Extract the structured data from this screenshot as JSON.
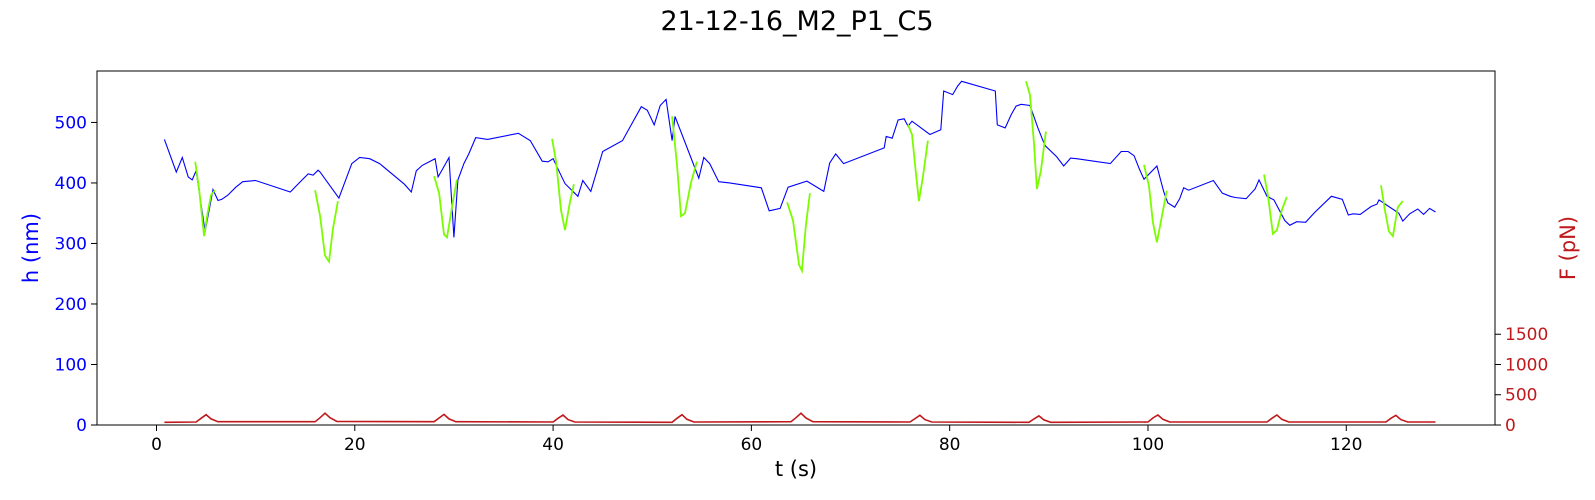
{
  "chart_data": {
    "type": "line",
    "title": "21-12-16_M2_P1_C5",
    "xlabel": "t (s)",
    "ylabel_left": "h (nm)",
    "ylabel_right": "F (pN)",
    "xlim": [
      -6,
      135
    ],
    "ylim_left": [
      0,
      585
    ],
    "ylim_right": [
      0,
      5850
    ],
    "x_ticks": [
      0,
      20,
      40,
      60,
      80,
      100,
      120
    ],
    "y_left_ticks": [
      0,
      100,
      200,
      300,
      400,
      500
    ],
    "y_right_ticks": [
      0,
      500,
      1000,
      1500
    ],
    "grid": false,
    "colors": {
      "height": "#0000ff",
      "height_highlight": "#7cfc00",
      "force": "#c0191c",
      "left_axis": "#0000ff",
      "right_axis": "#c0191c"
    },
    "series": [
      {
        "axis": "left",
        "color": "#0000ff",
        "x": [
          0.8,
          2.0,
          2.6,
          3.2,
          3.6,
          4.0,
          4.9,
          5.7,
          6.2,
          6.6,
          7.2,
          8.0,
          8.7,
          10.0,
          13.5,
          14.5,
          15.3,
          15.8,
          16.3,
          16.5,
          18.4,
          19.7,
          20.5,
          21.5,
          22.5,
          25.0,
          25.7,
          26.2,
          26.8,
          28.1,
          28.4,
          28.9,
          29.5,
          30.0,
          30.4,
          31.0,
          31.5,
          32.2,
          33.4,
          36.5,
          37.7,
          38.9,
          39.5,
          40.0,
          40.4,
          41.2,
          42.5,
          43.0,
          43.8,
          45.0,
          47.0,
          48.9,
          49.5,
          50.2,
          50.8,
          51.4,
          52.0,
          52.3,
          54.7,
          55.2,
          55.8,
          56.7,
          57.8,
          61.0,
          61.8,
          62.9,
          63.7,
          65.6,
          67.3,
          67.9,
          68.5,
          69.3,
          73.4,
          73.6,
          74.2,
          74.8,
          75.4,
          75.8,
          76.2,
          78.0,
          79.1,
          79.4,
          80.3,
          80.8,
          81.2,
          84.6,
          84.8,
          85.6,
          86.2,
          86.7,
          87.2,
          88.1,
          88.9,
          89.6,
          90.8,
          91.5,
          92.2,
          92.8,
          96.2,
          97.3,
          98.0,
          98.6,
          99.1,
          99.6,
          100.9,
          101.6,
          102.0,
          102.7,
          103.2,
          103.6,
          104.1,
          106.6,
          107.5,
          108.3,
          108.8,
          109.9,
          110.8,
          111.2,
          112.0,
          112.7,
          113.8,
          114.3,
          115.0,
          115.9,
          116.8,
          118.5,
          119.6,
          120.2,
          120.7,
          121.4,
          122.5,
          123.1,
          123.3,
          125.3,
          125.7,
          126.4,
          127.2,
          127.8,
          128.4,
          129.0
        ],
        "y": [
          472,
          418,
          442,
          410,
          405,
          420,
          320,
          389,
          371,
          373,
          380,
          393,
          402,
          404,
          385,
          402,
          415,
          413,
          421,
          418,
          375,
          432,
          442,
          440,
          432,
          398,
          385,
          420,
          429,
          440,
          410,
          424,
          442,
          310,
          405,
          432,
          448,
          475,
          472,
          482,
          470,
          436,
          435,
          440,
          426,
          399,
          378,
          404,
          386,
          452,
          470,
          526,
          520,
          496,
          528,
          538,
          470,
          510,
          408,
          442,
          432,
          402,
          400,
          392,
          354,
          358,
          393,
          403,
          386,
          433,
          448,
          432,
          458,
          477,
          474,
          504,
          506,
          494,
          502,
          480,
          488,
          552,
          546,
          560,
          568,
          552,
          496,
          491,
          513,
          527,
          530,
          528,
          491,
          462,
          443,
          428,
          441,
          440,
          432,
          452,
          452,
          445,
          424,
          406,
          428,
          385,
          367,
          360,
          374,
          392,
          388,
          404,
          383,
          378,
          376,
          374,
          390,
          405,
          378,
          372,
          338,
          330,
          336,
          335,
          351,
          378,
          373,
          347,
          349,
          348,
          361,
          365,
          372,
          350,
          337,
          349,
          357,
          348,
          358,
          352
        ]
      },
      {
        "axis": "left",
        "color": "#7cfc00",
        "segments": [
          {
            "x": [
              3.9,
              4.3,
              4.8,
              5.1,
              5.5,
              5.9
            ],
            "y": [
              435,
              390,
              312,
              345,
              380,
              388
            ]
          },
          {
            "x": [
              16.0,
              16.5,
              17.0,
              17.4,
              17.8,
              18.3
            ],
            "y": [
              388,
              345,
              280,
              270,
              325,
              370
            ]
          },
          {
            "x": [
              28.0,
              28.5,
              29.0,
              29.3,
              29.8,
              30.3
            ],
            "y": [
              411,
              383,
              315,
              310,
              360,
              405
            ]
          },
          {
            "x": [
              39.9,
              40.3,
              40.8,
              41.2,
              41.7,
              42.1
            ],
            "y": [
              473,
              435,
              355,
              322,
              368,
              398
            ]
          },
          {
            "x": [
              52.0,
              52.5,
              52.9,
              53.3,
              53.9,
              54.5
            ],
            "y": [
              510,
              430,
              345,
              350,
              400,
              435
            ]
          },
          {
            "x": [
              63.6,
              64.2,
              64.8,
              65.1,
              65.5,
              65.9
            ],
            "y": [
              368,
              338,
              265,
              255,
              330,
              383
            ]
          },
          {
            "x": [
              75.8,
              76.2,
              76.6,
              76.9,
              77.3,
              77.8
            ],
            "y": [
              496,
              480,
              415,
              370,
              410,
              470
            ]
          },
          {
            "x": [
              87.7,
              88.1,
              88.5,
              88.8,
              89.2,
              89.7
            ],
            "y": [
              568,
              545,
              465,
              390,
              420,
              485
            ]
          },
          {
            "x": [
              99.6,
              100.1,
              100.5,
              100.9,
              101.4,
              101.9
            ],
            "y": [
              430,
              395,
              335,
              302,
              345,
              387
            ]
          },
          {
            "x": [
              111.7,
              112.1,
              112.6,
              113.0,
              113.5,
              114.0
            ],
            "y": [
              414,
              380,
              316,
              322,
              355,
              377
            ]
          },
          {
            "x": [
              123.5,
              123.9,
              124.3,
              124.7,
              125.2,
              125.7
            ],
            "y": [
              396,
              355,
              320,
              312,
              360,
              370
            ]
          }
        ]
      },
      {
        "axis": "right",
        "color": "#c0191c",
        "x": [
          0.8,
          4.0,
          4.5,
          5.0,
          5.5,
          6.2,
          16.0,
          16.5,
          17.0,
          17.5,
          18.2,
          28.0,
          28.5,
          29.0,
          29.5,
          30.2,
          40.0,
          40.5,
          41.0,
          41.5,
          42.2,
          52.0,
          52.5,
          53.0,
          53.5,
          54.2,
          64.0,
          64.5,
          65.0,
          65.5,
          66.2,
          76.0,
          76.5,
          77.0,
          77.5,
          78.2,
          88.0,
          88.5,
          89.0,
          89.5,
          90.2,
          100.0,
          100.5,
          101.0,
          101.5,
          102.2,
          112.0,
          112.5,
          113.0,
          113.5,
          114.2,
          124.0,
          124.5,
          125.0,
          125.5,
          126.2,
          129.0
        ],
        "y": [
          45,
          50,
          110,
          170,
          100,
          55,
          55,
          120,
          195,
          120,
          60,
          55,
          115,
          175,
          100,
          55,
          50,
          110,
          165,
          90,
          50,
          45,
          110,
          170,
          95,
          50,
          55,
          120,
          195,
          115,
          55,
          50,
          105,
          160,
          90,
          50,
          45,
          100,
          150,
          85,
          45,
          50,
          115,
          165,
          95,
          50,
          50,
          110,
          165,
          95,
          50,
          50,
          110,
          160,
          90,
          50,
          50
        ]
      }
    ]
  }
}
